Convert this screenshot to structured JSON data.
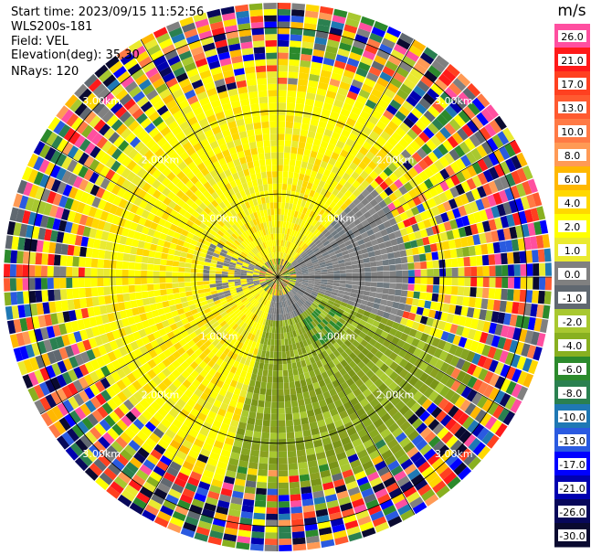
{
  "header": {
    "start_time": "Start time: 2023/09/15 11:52:56",
    "instrument": "WLS200s-181",
    "field": "Field: VEL",
    "elevation": "Elevation(deg): 35.30",
    "nrays": "NRays: 120"
  },
  "chart_data": {
    "type": "heatmap",
    "projection": "polar-ppi",
    "field": "VEL",
    "n_rays": 120,
    "range_rings_km": [
      1.0,
      2.0,
      3.0
    ],
    "ring_labels": [
      "1.00km",
      "2.00km",
      "3.00km"
    ],
    "max_range_km": 3.3,
    "azimuth_spokes_deg": [
      0,
      30,
      60,
      90,
      120,
      150,
      180,
      210,
      240,
      270,
      300,
      330
    ],
    "colorbar": {
      "unit": "m/s",
      "ticks": [
        "26.0",
        "21.0",
        "17.0",
        "13.0",
        "10.0",
        "8.0",
        "6.0",
        "4.0",
        "2.0",
        "1.0",
        "0.0",
        "-1.0",
        "-2.0",
        "-4.0",
        "-6.0",
        "-8.0",
        "-10.0",
        "-13.0",
        "-17.0",
        "-21.0",
        "-26.0",
        "-30.0"
      ],
      "colors": [
        "#ff4fa0",
        "#ff1a1a",
        "#ff4020",
        "#ff5a30",
        "#ff7a45",
        "#ff9a55",
        "#ffb800",
        "#ffd800",
        "#ffff00",
        "#eaea30",
        "#808080",
        "#606870",
        "#a8c830",
        "#88b020",
        "#2c8a2c",
        "#2a8050",
        "#1f78b4",
        "#2a5ae0",
        "#0000ff",
        "#0000b0",
        "#08085a",
        "#0a0a30"
      ]
    },
    "regions": [
      {
        "description": "inner core mixed",
        "range_km": [
          0.0,
          0.25
        ],
        "color_band": "mixed"
      },
      {
        "name": "positive lobe",
        "azimuth_deg": [
          195,
          45
        ],
        "range_km": [
          0.2,
          2.6
        ],
        "value": 2.0
      },
      {
        "name": "zero band",
        "azimuth_deg": [
          45,
          110
        ],
        "range_km": [
          0.2,
          1.6
        ],
        "value": 0.0
      },
      {
        "name": "negative lobe",
        "azimuth_deg": [
          110,
          195
        ],
        "range_km": [
          0.4,
          2.6
        ],
        "value": -2.0
      },
      {
        "name": "noise ring",
        "range_km": [
          2.6,
          3.3
        ],
        "value": "random"
      }
    ]
  }
}
